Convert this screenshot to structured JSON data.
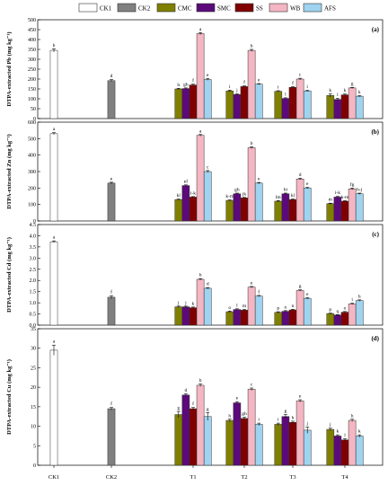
{
  "legend": [
    {
      "name": "CK1",
      "color": "#ffffff"
    },
    {
      "name": "CK2",
      "color": "#808080"
    },
    {
      "name": "CMC",
      "color": "#7f7f00"
    },
    {
      "name": "SMC",
      "color": "#5b0a7a"
    },
    {
      "name": "SS",
      "color": "#800000"
    },
    {
      "name": "WB",
      "color": "#f4b6c2"
    },
    {
      "name": "AFS",
      "color": "#9fd3f0"
    }
  ],
  "x_categories": [
    "CK1",
    "CK2",
    "T1",
    "T2",
    "T3",
    "T4"
  ],
  "chart_data": [
    {
      "type": "bar",
      "panel": "(a)",
      "ylabel": "DTPA-extracted Pb (mg kg⁻¹)",
      "ylim": [
        0,
        500
      ],
      "yticks": [
        0,
        50,
        100,
        150,
        200,
        250,
        300,
        350,
        400,
        450,
        500
      ],
      "tick_labels": [
        "0",
        "50",
        "100",
        "150",
        "200",
        "250",
        "300",
        "350",
        "400",
        "450",
        "500"
      ],
      "controls": [
        {
          "group": "CK1",
          "series": "CK1",
          "value": 345,
          "err": 8,
          "label": "b"
        },
        {
          "group": "CK2",
          "series": "CK2",
          "value": 192,
          "err": 5,
          "label": "d"
        }
      ],
      "categories": [
        "T1",
        "T2",
        "T3",
        "T4"
      ],
      "series": [
        {
          "name": "CMC",
          "values": [
            150,
            140,
            138,
            117
          ],
          "errors": [
            3,
            4,
            3,
            8
          ],
          "labels": [
            "h",
            "i",
            "i",
            "k"
          ]
        },
        {
          "name": "SMC",
          "values": [
            152,
            122,
            102,
            97
          ],
          "errors": [
            3,
            3,
            3,
            5
          ],
          "labels": [
            "gh",
            "j",
            "l",
            "l"
          ]
        },
        {
          "name": "SS",
          "values": [
            170,
            162,
            158,
            120
          ],
          "errors": [
            4,
            3,
            3,
            4
          ],
          "labels": [
            "f",
            "f",
            "f",
            "k"
          ]
        },
        {
          "name": "WB",
          "values": [
            430,
            345,
            200,
            155
          ],
          "errors": [
            5,
            5,
            4,
            3
          ],
          "labels": [
            "a",
            "b",
            "c",
            "g"
          ]
        },
        {
          "name": "AFS",
          "values": [
            198,
            174,
            140,
            113
          ],
          "errors": [
            4,
            3,
            3,
            3
          ],
          "labels": [
            "e",
            "e",
            "i",
            "k"
          ]
        }
      ]
    },
    {
      "type": "bar",
      "panel": "(b)",
      "ylabel": "DTPA-extracted Zn (mg kg⁻¹)",
      "ylim": [
        0,
        600
      ],
      "yticks": [
        0,
        100,
        200,
        300,
        400,
        500,
        600
      ],
      "tick_labels": [
        "0",
        "100",
        "200",
        "300",
        "400",
        "500",
        "600"
      ],
      "controls": [
        {
          "group": "CK1",
          "series": "CK1",
          "value": 530,
          "err": 6,
          "label": "a"
        },
        {
          "group": "CK2",
          "series": "CK2",
          "value": 230,
          "err": 5,
          "label": "e"
        }
      ],
      "categories": [
        "T1",
        "T2",
        "T3",
        "T4"
      ],
      "series": [
        {
          "name": "CMC",
          "values": [
            130,
            125,
            120,
            105
          ],
          "errors": [
            3,
            3,
            4,
            3
          ],
          "labels": [
            "kl",
            "k-m",
            "lm",
            "m"
          ]
        },
        {
          "name": "SMC",
          "values": [
            215,
            165,
            165,
            145
          ],
          "errors": [
            4,
            4,
            4,
            4
          ],
          "labels": [
            "ef",
            "gh",
            "hi",
            "i-k"
          ]
        },
        {
          "name": "SS",
          "values": [
            145,
            140,
            130,
            120
          ],
          "errors": [
            3,
            3,
            3,
            3
          ],
          "labels": [
            "i-k",
            "jk",
            "kl",
            "k-m"
          ]
        },
        {
          "name": "WB",
          "values": [
            520,
            445,
            255,
            195
          ],
          "errors": [
            5,
            5,
            5,
            5
          ],
          "labels": [
            "a",
            "b",
            "d",
            "fg"
          ]
        },
        {
          "name": "AFS",
          "values": [
            300,
            230,
            200,
            165
          ],
          "errors": [
            6,
            4,
            4,
            4
          ],
          "labels": [
            "c",
            "e",
            "e",
            "h-j"
          ]
        }
      ]
    },
    {
      "type": "bar",
      "panel": "(c)",
      "ylabel": "DTPA-extracted Cd (mg kg⁻¹)",
      "ylim": [
        0,
        4.5
      ],
      "yticks": [
        0,
        0.5,
        1,
        1.5,
        2,
        2.5,
        3,
        3.5,
        4,
        4.5
      ],
      "tick_labels": [
        "0.0",
        "0.5",
        "1.0",
        "1.5",
        "2.0",
        "2.5",
        "3.0",
        "3.5",
        "4.0",
        "4.5"
      ],
      "controls": [
        {
          "group": "CK1",
          "series": "CK1",
          "value": 3.73,
          "err": 0.04,
          "label": "a"
        },
        {
          "group": "CK2",
          "series": "CK2",
          "value": 1.25,
          "err": 0.07,
          "label": "f"
        }
      ],
      "categories": [
        "T1",
        "T2",
        "T3",
        "T4"
      ],
      "series": [
        {
          "name": "CMC",
          "values": [
            0.82,
            0.6,
            0.57,
            0.52
          ],
          "errors": [
            0.03,
            0.03,
            0.03,
            0.02
          ],
          "labels": [
            "j",
            "o",
            "p",
            "p"
          ]
        },
        {
          "name": "SMC",
          "values": [
            0.82,
            0.7,
            0.62,
            0.45
          ],
          "errors": [
            0.03,
            0.03,
            0.03,
            0.02
          ],
          "labels": [
            "j",
            "l",
            "o",
            "q"
          ]
        },
        {
          "name": "SS",
          "values": [
            0.78,
            0.67,
            0.68,
            0.58
          ],
          "errors": [
            0.03,
            0.03,
            0.03,
            0.03
          ],
          "labels": [
            "k",
            "m",
            "n",
            "o"
          ]
        },
        {
          "name": "WB",
          "values": [
            2.05,
            1.7,
            1.55,
            0.95
          ],
          "errors": [
            0.03,
            0.03,
            0.03,
            0.03
          ],
          "labels": [
            "b",
            "e",
            "g",
            "i"
          ]
        },
        {
          "name": "AFS",
          "values": [
            1.65,
            1.3,
            1.2,
            1.1
          ],
          "errors": [
            0.03,
            0.03,
            0.03,
            0.03
          ],
          "labels": [
            "d",
            "f",
            "e",
            "h"
          ]
        }
      ]
    },
    {
      "type": "bar",
      "panel": "(d)",
      "ylabel": "DTPA-extracted Cu (mg kg⁻¹)",
      "ylim": [
        0,
        35
      ],
      "yticks": [
        0,
        5,
        10,
        15,
        20,
        25,
        30,
        35
      ],
      "tick_labels": [
        "0",
        "5",
        "10",
        "15",
        "20",
        "25",
        "30",
        "35"
      ],
      "controls": [
        {
          "group": "CK1",
          "series": "CK1",
          "value": 29.5,
          "err": 1.3,
          "label": "a"
        },
        {
          "group": "CK2",
          "series": "CK2",
          "value": 14.5,
          "err": 0.3,
          "label": "f"
        }
      ],
      "categories": [
        "T1",
        "T2",
        "T3",
        "T4"
      ],
      "series": [
        {
          "name": "CMC",
          "values": [
            13.0,
            11.5,
            10.5,
            9.2
          ],
          "errors": [
            0.8,
            0.3,
            0.3,
            0.3
          ],
          "labels": [
            "g",
            "h",
            "i",
            "j"
          ]
        },
        {
          "name": "SMC",
          "values": [
            18.0,
            16.0,
            12.5,
            7.5
          ],
          "errors": [
            0.3,
            0.3,
            0.5,
            0.3
          ],
          "labels": [
            "d",
            "e",
            "g",
            "k"
          ]
        },
        {
          "name": "SS",
          "values": [
            14.5,
            12.0,
            11.0,
            6.5
          ],
          "errors": [
            0.3,
            0.3,
            0.3,
            0.3
          ],
          "labels": [
            "f",
            "gh",
            "h",
            "l"
          ]
        },
        {
          "name": "WB",
          "values": [
            20.5,
            19.5,
            16.5,
            11.5
          ],
          "errors": [
            0.3,
            0.3,
            0.3,
            0.3
          ],
          "labels": [
            "b",
            "c",
            "e",
            "h"
          ]
        },
        {
          "name": "AFS",
          "values": [
            12.5,
            10.5,
            9.0,
            7.5
          ],
          "errors": [
            1.0,
            0.3,
            0.8,
            0.3
          ],
          "labels": [
            "g",
            "i",
            "j",
            "k"
          ]
        }
      ]
    }
  ]
}
